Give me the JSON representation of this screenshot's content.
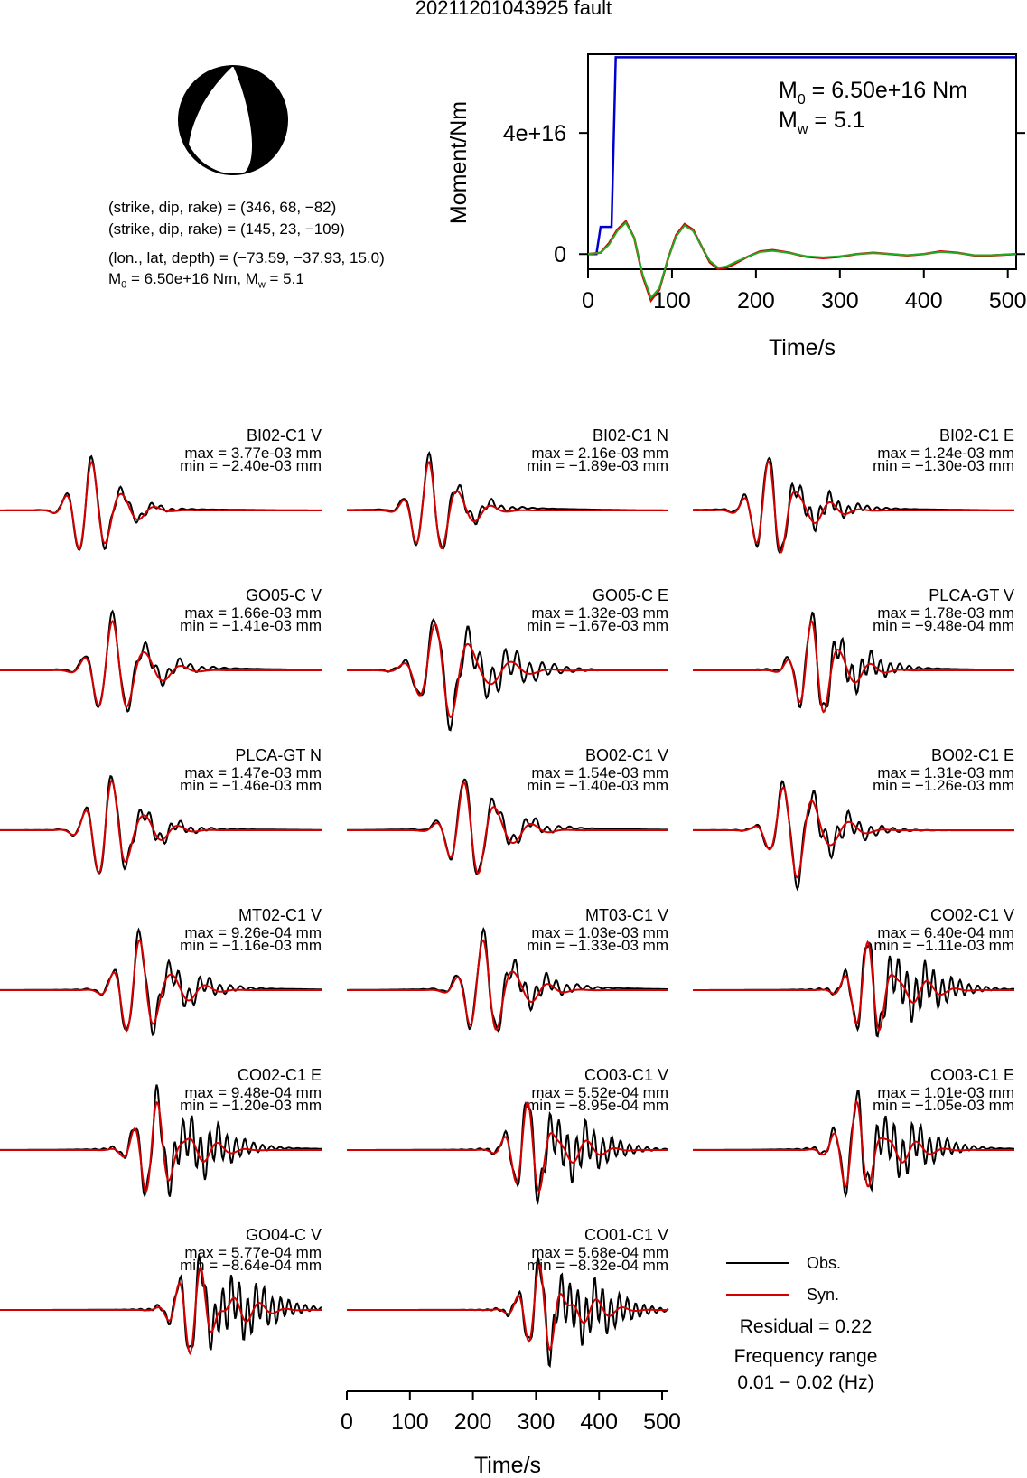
{
  "title": "20211201043925 fault",
  "mechanism": {
    "plane1": "(strike, dip, rake) = (346, 68, −82)",
    "plane2": "(strike, dip, rake) = (145, 23, −109)",
    "location": "(lon., lat, depth) = (−73.59, −37.93, 15.0)",
    "m0_label": "M",
    "m0_sub": "0",
    "m0_text": " = 6.50e+16 Nm, M",
    "mw_sub": "w",
    "mw_text": " = 5.1"
  },
  "moment_plot": {
    "ylabel": "Moment/Nm",
    "xlabel": "Time/s",
    "m0_annotation": "M",
    "m0_annotation_sub": "0",
    "m0_annotation_value": " = 6.50e+16 Nm",
    "mw_annotation": "M",
    "mw_annotation_sub": "w",
    "mw_annotation_value": " = 5.1",
    "yticks": [
      "0",
      "4e+16"
    ],
    "xticks": [
      "0",
      "100",
      "200",
      "300",
      "400",
      "500"
    ]
  },
  "wave_axis": {
    "xlabel": "Time/s",
    "xticks": [
      "0",
      "100",
      "200",
      "300",
      "400",
      "500"
    ]
  },
  "legend": {
    "obs": "Obs.",
    "syn": "Syn.",
    "residual": "Residual = 0.22",
    "freq_title": "Frequency range",
    "freq_range": "0.01 − 0.02 (Hz)"
  },
  "colors": {
    "observed": "#000000",
    "synthetic": "#d40000",
    "cumulative_moment": "#0000cc",
    "moment_rate_obs": "#d40000",
    "moment_rate_fit": "#22aa22"
  },
  "stations": [
    {
      "name": "BI02-C1 V",
      "max": "max = 3.77e-03 mm",
      "min": "min = −2.40e-03 mm"
    },
    {
      "name": "BI02-C1 N",
      "max": "max = 2.16e-03 mm",
      "min": "min = −1.89e-03 mm"
    },
    {
      "name": "BI02-C1 E",
      "max": "max = 1.24e-03 mm",
      "min": "min = −1.30e-03 mm"
    },
    {
      "name": "GO05-C V",
      "max": "max = 1.66e-03 mm",
      "min": "min = −1.41e-03 mm"
    },
    {
      "name": "GO05-C E",
      "max": "max = 1.32e-03 mm",
      "min": "min = −1.67e-03 mm"
    },
    {
      "name": "PLCA-GT V",
      "max": "max = 1.78e-03 mm",
      "min": "min = −9.48e-04 mm"
    },
    {
      "name": "PLCA-GT N",
      "max": "max = 1.47e-03 mm",
      "min": "min = −1.46e-03 mm"
    },
    {
      "name": "BO02-C1 V",
      "max": "max = 1.54e-03 mm",
      "min": "min = −1.40e-03 mm"
    },
    {
      "name": "BO02-C1 E",
      "max": "max = 1.31e-03 mm",
      "min": "min = −1.26e-03 mm"
    },
    {
      "name": "MT02-C1 V",
      "max": "max = 9.26e-04 mm",
      "min": "min = −1.16e-03 mm"
    },
    {
      "name": "MT03-C1 V",
      "max": "max = 1.03e-03 mm",
      "min": "min = −1.33e-03 mm"
    },
    {
      "name": "CO02-C1 V",
      "max": "max = 6.40e-04 mm",
      "min": "min = −1.11e-03 mm"
    },
    {
      "name": "CO02-C1 E",
      "max": "max = 9.48e-04 mm",
      "min": "min = −1.20e-03 mm"
    },
    {
      "name": "CO03-C1 V",
      "max": "max = 5.52e-04 mm",
      "min": "min = −8.95e-04 mm"
    },
    {
      "name": "CO03-C1 E",
      "max": "max = 1.01e-03 mm",
      "min": "min = −1.05e-03 mm"
    },
    {
      "name": "GO04-C V",
      "max": "max = 5.77e-04 mm",
      "min": "min = −8.64e-04 mm"
    },
    {
      "name": "CO01-C1 V",
      "max": "max = 5.68e-04 mm",
      "min": "min = −8.32e-04 mm"
    }
  ],
  "chart_data": {
    "type": "line",
    "xlim": [
      0,
      510
    ],
    "ylim": [
      -5000000000000000.0,
      6.6e+16
    ],
    "cumulative_moment": {
      "x": [
        0,
        10,
        15,
        28,
        33,
        510
      ],
      "y": [
        0,
        0,
        9000000000000000.0,
        9000000000000000.0,
        6.5e+16,
        6.5e+16
      ]
    },
    "moment_rate_x": [
      0,
      15,
      25,
      35,
      45,
      55,
      65,
      75,
      85,
      95,
      105,
      115,
      125,
      135,
      145,
      155,
      165,
      175,
      190,
      205,
      220,
      240,
      260,
      280,
      300,
      320,
      340,
      360,
      380,
      400,
      420,
      440,
      460,
      480,
      510
    ],
    "moment_rate_obs": [
      0,
      0.05,
      0.4,
      0.9,
      1.2,
      0.6,
      -0.8,
      -1.7,
      -1.3,
      -0.2,
      0.7,
      1.1,
      0.9,
      0.3,
      -0.3,
      -0.55,
      -0.5,
      -0.35,
      -0.1,
      0.1,
      0.15,
      0.05,
      -0.1,
      -0.15,
      -0.1,
      0,
      0.05,
      0,
      -0.05,
      0,
      0.1,
      0.05,
      -0.05,
      -0.05,
      0
    ],
    "moment_rate_fit": [
      0,
      0.05,
      0.35,
      0.85,
      1.15,
      0.6,
      -0.75,
      -1.6,
      -1.25,
      -0.2,
      0.65,
      1.05,
      0.85,
      0.3,
      -0.25,
      -0.5,
      -0.45,
      -0.3,
      -0.1,
      0.08,
      0.12,
      0.04,
      -0.08,
      -0.12,
      -0.08,
      0,
      0.04,
      0,
      -0.04,
      0,
      0.08,
      0.04,
      -0.04,
      -0.04,
      0
    ]
  }
}
